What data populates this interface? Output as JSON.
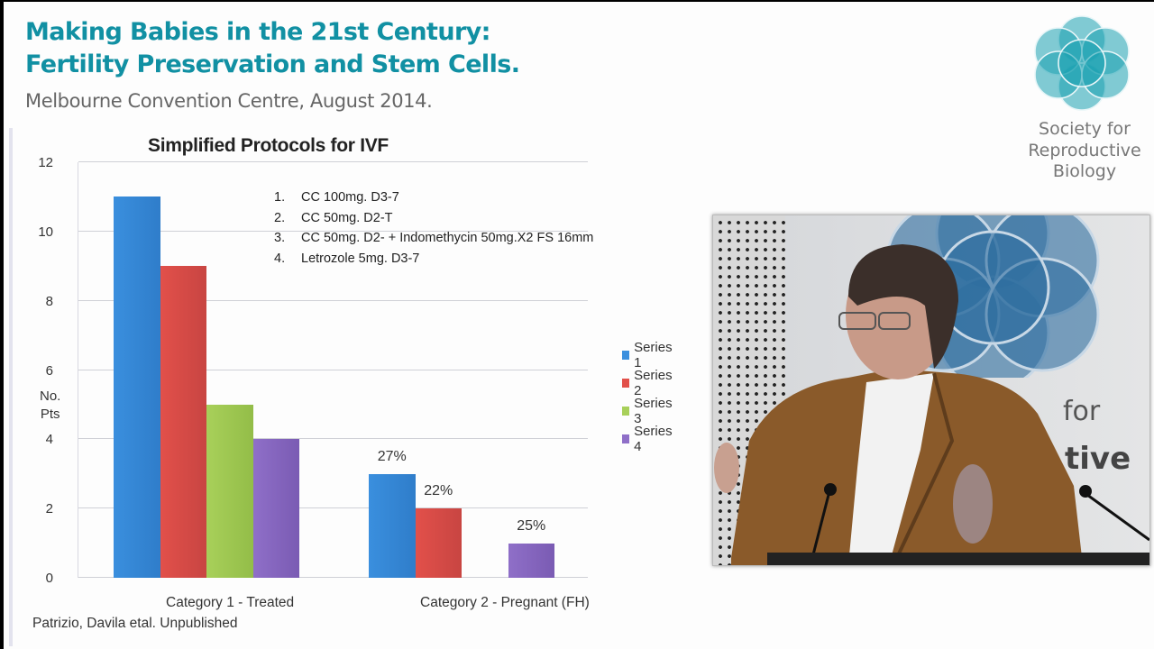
{
  "header": {
    "title_line1": "Making Babies in the 21st Century:",
    "title_line2": "Fertility Preservation and Stem Cells.",
    "subtitle": "Melbourne Convention Centre, August 2014."
  },
  "logo": {
    "line1": "Society for",
    "line2": "Reproductive",
    "line3": "Biology",
    "color": "#1190a3"
  },
  "protocols": [
    {
      "n": "1.",
      "text": "CC 100mg. D3-7"
    },
    {
      "n": "2.",
      "text": "CC 50mg. D2-T"
    },
    {
      "n": "3.",
      "text": "CC 50mg. D2- + Indomethycin 50mg.X2 FS 16mm"
    },
    {
      "n": "4.",
      "text": "Letrozole 5mg. D3-7"
    }
  ],
  "chart_data": {
    "type": "bar",
    "title": "Simplified Protocols for IVF",
    "xlabel": "",
    "ylabel": "No. Pts",
    "ylabel_lines": [
      "No.",
      "Pts"
    ],
    "ylim": [
      0,
      12
    ],
    "yticks": [
      "0",
      "2",
      "4",
      "6",
      "8",
      "10",
      "12"
    ],
    "grid": true,
    "legend_position": "right",
    "categories": [
      "Category 1  - Treated",
      "Category 2 - Pregnant (FH)"
    ],
    "series": [
      {
        "name": "Series 1",
        "color": "#3a8fde",
        "values": [
          11,
          3
        ],
        "labels": [
          "",
          "27%"
        ]
      },
      {
        "name": "Series 2",
        "color": "#e2504a",
        "values": [
          9,
          2
        ],
        "labels": [
          "",
          "22%"
        ]
      },
      {
        "name": "Series 3",
        "color": "#a8d05a",
        "values": [
          5,
          0
        ],
        "labels": [
          "",
          ""
        ]
      },
      {
        "name": "Series 4",
        "color": "#8f6fc8",
        "values": [
          4,
          1
        ],
        "labels": [
          "",
          "25%"
        ]
      }
    ]
  },
  "citation": "Patrizio, Davila etal. Unpublished",
  "video": {
    "banner_text_1": "for",
    "banner_text_2": "tive"
  }
}
